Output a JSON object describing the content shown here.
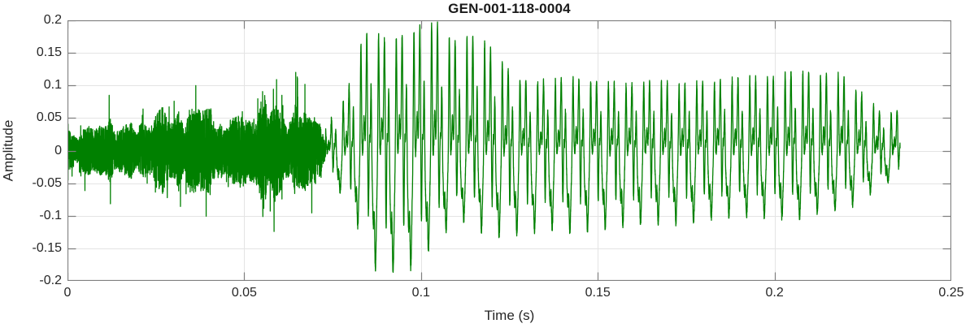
{
  "figure": {
    "title": "GEN-001-118-0004"
  },
  "chart_data": {
    "type": "line",
    "title": "GEN-001-118-0004",
    "xlabel": "Time (s)",
    "ylabel": "Amplitude",
    "xlim": [
      0,
      0.25
    ],
    "ylim": [
      -0.2,
      0.2
    ],
    "xticks": [
      0,
      0.05,
      0.1,
      0.15,
      0.2,
      0.25
    ],
    "xtick_labels": [
      "0",
      "0.05",
      "0.1",
      "0.15",
      "0.2",
      "0.25"
    ],
    "yticks": [
      -0.2,
      -0.15,
      -0.1,
      -0.05,
      0,
      0.05,
      0.1,
      0.15,
      0.2
    ],
    "ytick_labels": [
      "-0.2",
      "-0.15",
      "-0.1",
      "-0.05",
      "0",
      "0.05",
      "0.1",
      "0.15",
      "0.2"
    ],
    "grid": true,
    "legend": null,
    "line_color": "#008000",
    "background": "#ffffff",
    "axis_color": "#808080",
    "grid_color": "#e4e4e4",
    "text_color": "#262626",
    "signal": {
      "description": "speech-like waveform: low-amplitude unvoiced noise from 0 to ~0.073 s, then a voiced periodic segment (~200 Hz) from ~0.073 to ~0.2355 s peaking near +0.2/-0.19 around 0.085-0.115 s, decaying to ~+/-0.11 through 0.13-0.22 s and fading to ~+/-0.05 at the end",
      "t_start": 0,
      "t_end": 0.2355,
      "sample_rate": 48000,
      "seed": 20240913,
      "noise_segment": {
        "t0": 0,
        "t1": 0.073,
        "spike_prob": 0.018,
        "spike_gain": 1.8,
        "envelope": [
          [
            0,
            0.02
          ],
          [
            0.005,
            0.025
          ],
          [
            0.012,
            0.035
          ],
          [
            0.018,
            0.03
          ],
          [
            0.025,
            0.045
          ],
          [
            0.03,
            0.04
          ],
          [
            0.037,
            0.05
          ],
          [
            0.043,
            0.045
          ],
          [
            0.05,
            0.04
          ],
          [
            0.055,
            0.065
          ],
          [
            0.06,
            0.05
          ],
          [
            0.064,
            0.055
          ],
          [
            0.068,
            0.045
          ],
          [
            0.0715,
            0.035
          ],
          [
            0.073,
            0.012
          ]
        ]
      },
      "voiced_segment": {
        "t0": 0.073,
        "t1": 0.2355,
        "f0_hz": 200,
        "jitter_noise": 0.006,
        "harmonic_amps": [
          1,
          0.55,
          0.8,
          0.45,
          0.5,
          0.32,
          0.28,
          0.18,
          0.14,
          0.1,
          0.07,
          0.05
        ],
        "harmonic_phases": [
          0.0,
          1.1,
          2.2,
          0.6,
          2.9,
          1.5,
          0.2,
          2.5,
          1.0,
          3.0,
          0.4,
          1.9
        ],
        "pos_envelope": [
          [
            0.073,
            0.03
          ],
          [
            0.0755,
            0.055
          ],
          [
            0.078,
            0.075
          ],
          [
            0.081,
            0.115
          ],
          [
            0.0835,
            0.175
          ],
          [
            0.087,
            0.18
          ],
          [
            0.0905,
            0.17
          ],
          [
            0.094,
            0.175
          ],
          [
            0.0975,
            0.185
          ],
          [
            0.101,
            0.19
          ],
          [
            0.1035,
            0.198
          ],
          [
            0.107,
            0.18
          ],
          [
            0.1105,
            0.165
          ],
          [
            0.114,
            0.175
          ],
          [
            0.1175,
            0.17
          ],
          [
            0.121,
            0.145
          ],
          [
            0.1245,
            0.125
          ],
          [
            0.128,
            0.11
          ],
          [
            0.135,
            0.105
          ],
          [
            0.142,
            0.11
          ],
          [
            0.15,
            0.105
          ],
          [
            0.158,
            0.1
          ],
          [
            0.166,
            0.105
          ],
          [
            0.174,
            0.1
          ],
          [
            0.182,
            0.105
          ],
          [
            0.19,
            0.11
          ],
          [
            0.198,
            0.11
          ],
          [
            0.2055,
            0.12
          ],
          [
            0.213,
            0.115
          ],
          [
            0.2185,
            0.115
          ],
          [
            0.223,
            0.095
          ],
          [
            0.2265,
            0.075
          ],
          [
            0.23,
            0.06
          ],
          [
            0.2335,
            0.055
          ],
          [
            0.2355,
            0.065
          ]
        ],
        "neg_envelope": [
          [
            0.073,
            0.03
          ],
          [
            0.0755,
            0.05
          ],
          [
            0.078,
            0.07
          ],
          [
            0.081,
            0.105
          ],
          [
            0.0835,
            0.13
          ],
          [
            0.087,
            0.18
          ],
          [
            0.0905,
            0.19
          ],
          [
            0.094,
            0.185
          ],
          [
            0.0975,
            0.18
          ],
          [
            0.101,
            0.165
          ],
          [
            0.1035,
            0.14
          ],
          [
            0.107,
            0.125
          ],
          [
            0.1105,
            0.11
          ],
          [
            0.114,
            0.105
          ],
          [
            0.1175,
            0.125
          ],
          [
            0.121,
            0.13
          ],
          [
            0.1245,
            0.135
          ],
          [
            0.128,
            0.125
          ],
          [
            0.135,
            0.12
          ],
          [
            0.142,
            0.125
          ],
          [
            0.15,
            0.12
          ],
          [
            0.158,
            0.115
          ],
          [
            0.166,
            0.11
          ],
          [
            0.174,
            0.11
          ],
          [
            0.182,
            0.105
          ],
          [
            0.19,
            0.1
          ],
          [
            0.198,
            0.1
          ],
          [
            0.2055,
            0.105
          ],
          [
            0.213,
            0.095
          ],
          [
            0.2185,
            0.09
          ],
          [
            0.223,
            0.08
          ],
          [
            0.2265,
            0.065
          ],
          [
            0.23,
            0.055
          ],
          [
            0.2335,
            0.045
          ],
          [
            0.2355,
            0.04
          ]
        ]
      }
    }
  }
}
